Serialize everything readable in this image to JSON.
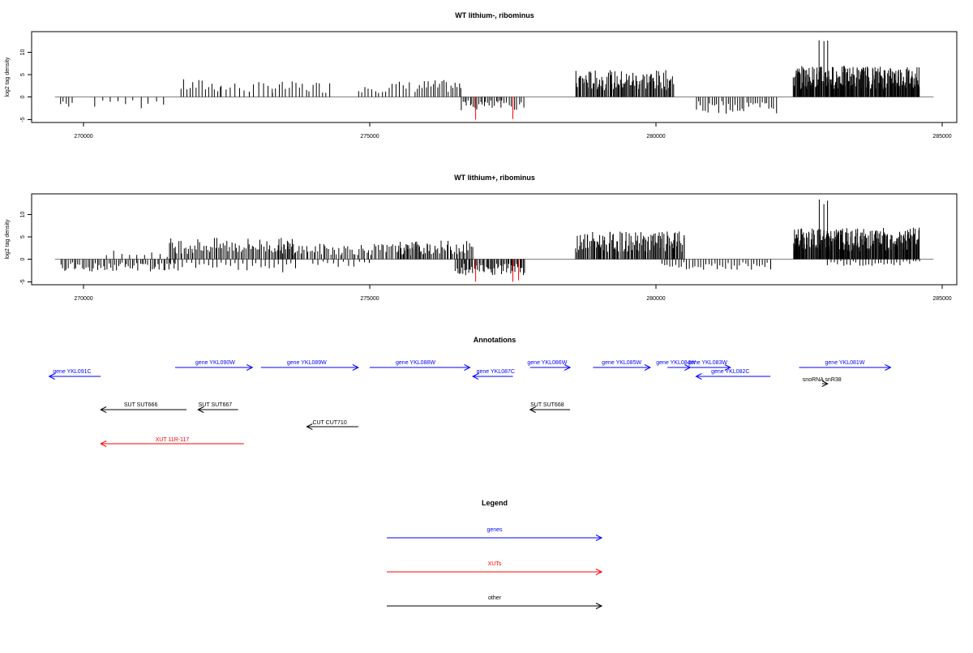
{
  "chart_data": [
    {
      "type": "bar",
      "title": "WT lithium-, ribominus",
      "ylabel": "log2 tag density",
      "xlabel": "",
      "xlim": [
        269700,
        284750
      ],
      "ylim": [
        -5.5,
        14.5
      ],
      "xticks": [
        "270000",
        "275000",
        "280000",
        "285000"
      ],
      "yticks": [
        "-5",
        "0",
        "5",
        "10"
      ],
      "grid": false,
      "baseline": {
        "from": 269500,
        "to": 284850
      },
      "series": [
        {
          "color": "#000000",
          "segments": [
            [
              269600,
              269800,
              0,
              -2.4,
              5
            ],
            [
              270200,
              271400,
              0,
              -2.6,
              10
            ],
            [
              271700,
              272400,
              0,
              4.0,
              14
            ],
            [
              272400,
              273300,
              0,
              3.4,
              12
            ],
            [
              273300,
              274300,
              0,
              3.5,
              18
            ],
            [
              274800,
              275700,
              0,
              3.6,
              16
            ],
            [
              275800,
              276600,
              0,
              3.8,
              22
            ],
            [
              276600,
              277300,
              0,
              -3.0,
              24
            ],
            [
              277300,
              277700,
              0,
              -3.0,
              10
            ],
            [
              278600,
              280300,
              0,
              6.0,
              110
            ],
            [
              280700,
              282100,
              0,
              -3.8,
              36
            ],
            [
              282400,
              284600,
              0,
              7.0,
              240
            ],
            [
              282850,
              283000,
              0,
              13.0,
              3
            ],
            [
              284500,
              284550,
              0,
              4.6,
              2
            ]
          ]
        },
        {
          "color": "#ff0000",
          "segments": [
            [
              276850,
              276900,
              0,
              -5.2,
              1
            ],
            [
              277500,
              277550,
              0,
              -5.2,
              1
            ]
          ]
        }
      ]
    },
    {
      "type": "bar",
      "title": "WT lithium+, ribominus",
      "ylabel": "log2 tag density",
      "xlabel": "",
      "xlim": [
        269700,
        284750
      ],
      "ylim": [
        -5.5,
        14.5
      ],
      "xticks": [
        "270000",
        "275000",
        "280000",
        "285000"
      ],
      "yticks": [
        "-5",
        "0",
        "5",
        "10"
      ],
      "grid": false,
      "baseline": {
        "from": 269500,
        "to": 284850
      },
      "series": [
        {
          "color": "#000000",
          "segments": [
            [
              269600,
              271600,
              0,
              -2.8,
              60
            ],
            [
              270400,
              271600,
              0,
              2.0,
              10
            ],
            [
              271500,
              273700,
              0,
              4.8,
              80
            ],
            [
              271500,
              273700,
              0,
              -3.0,
              30
            ],
            [
              273400,
              276000,
              0,
              3.5,
              80
            ],
            [
              274000,
              275000,
              0,
              -1.8,
              12
            ],
            [
              275500,
              276800,
              0,
              4.2,
              50
            ],
            [
              276500,
              277700,
              0,
              -3.8,
              60
            ],
            [
              278600,
              280500,
              0,
              6.2,
              120
            ],
            [
              280100,
              282000,
              0,
              -2.4,
              40
            ],
            [
              282400,
              284600,
              0,
              7.0,
              240
            ],
            [
              282850,
              283000,
              0,
              13.5,
              3
            ],
            [
              283000,
              284600,
              0,
              -1.5,
              30
            ],
            [
              284500,
              284600,
              0,
              7.2,
              2
            ]
          ]
        },
        {
          "color": "#ff0000",
          "segments": [
            [
              276850,
              276900,
              0,
              -5.2,
              1
            ],
            [
              277500,
              277550,
              0,
              -5.2,
              1
            ],
            [
              277600,
              277650,
              0,
              -5.2,
              1
            ]
          ]
        }
      ]
    }
  ],
  "annotations": {
    "title": "Annotations",
    "features": [
      {
        "label": "gene YKL091C",
        "color": "#0000ff",
        "from": 270300,
        "to": 269400,
        "label_at": 269800,
        "row": 1
      },
      {
        "label": "gene YKL090W",
        "color": "#0000ff",
        "from": 271600,
        "to": 272950,
        "label_at": 272300,
        "row": 0
      },
      {
        "label": "gene YKL089W",
        "color": "#0000ff",
        "from": 273100,
        "to": 274800,
        "label_at": 273900,
        "row": 0
      },
      {
        "label": "gene YKL088W",
        "color": "#0000ff",
        "from": 275000,
        "to": 276750,
        "label_at": 275800,
        "row": 0
      },
      {
        "label": "gene YKL087C",
        "color": "#0000ff",
        "from": 277500,
        "to": 276800,
        "label_at": 277200,
        "row": 1
      },
      {
        "label": "gene YKL086W",
        "color": "#0000ff",
        "from": 277800,
        "to": 278500,
        "label_at": 278100,
        "row": 0
      },
      {
        "label": "gene YKL085W",
        "color": "#0000ff",
        "from": 278900,
        "to": 279900,
        "label_at": 279400,
        "row": 0
      },
      {
        "label": "gene YKL084W",
        "color": "#0000ff",
        "from": 280200,
        "to": 280600,
        "label_at": 280350,
        "row": 0
      },
      {
        "label": "gene YKL083W",
        "color": "#0000ff",
        "from": 280600,
        "to": 281300,
        "label_at": 280900,
        "row": 0
      },
      {
        "label": "gene YKL082C",
        "color": "#0000ff",
        "from": 282000,
        "to": 280700,
        "label_at": 281300,
        "row": 1
      },
      {
        "label": "gene YKL081W",
        "color": "#0000ff",
        "from": 282500,
        "to": 284100,
        "label_at": 283300,
        "row": 0
      },
      {
        "label": "snoRNA snR38",
        "color": "#000000",
        "from": 282900,
        "to": 283000,
        "label_at": 282900,
        "row": 2
      },
      {
        "label": "SUT SUT666",
        "color": "#000000",
        "from": 271800,
        "to": 270300,
        "label_at": 271000,
        "row": 3
      },
      {
        "label": "SUT SUT667",
        "color": "#000000",
        "from": 272700,
        "to": 272000,
        "label_at": 272300,
        "row": 3
      },
      {
        "label": "SUT SUT668",
        "color": "#000000",
        "from": 278500,
        "to": 277800,
        "label_at": 278100,
        "row": 3
      },
      {
        "label": "CUT CUT710",
        "color": "#000000",
        "from": 274800,
        "to": 273900,
        "label_at": 274300,
        "row": 4
      },
      {
        "label": "XUT 11R-117",
        "color": "#ff0000",
        "from": 272800,
        "to": 270300,
        "label_at": 271550,
        "row": 5
      }
    ]
  },
  "legend": {
    "title": "Legend",
    "items": [
      {
        "label": "genes",
        "color": "#0000ff"
      },
      {
        "label": "XUTs",
        "color": "#ff0000"
      },
      {
        "label": "other",
        "color": "#000000"
      }
    ]
  }
}
